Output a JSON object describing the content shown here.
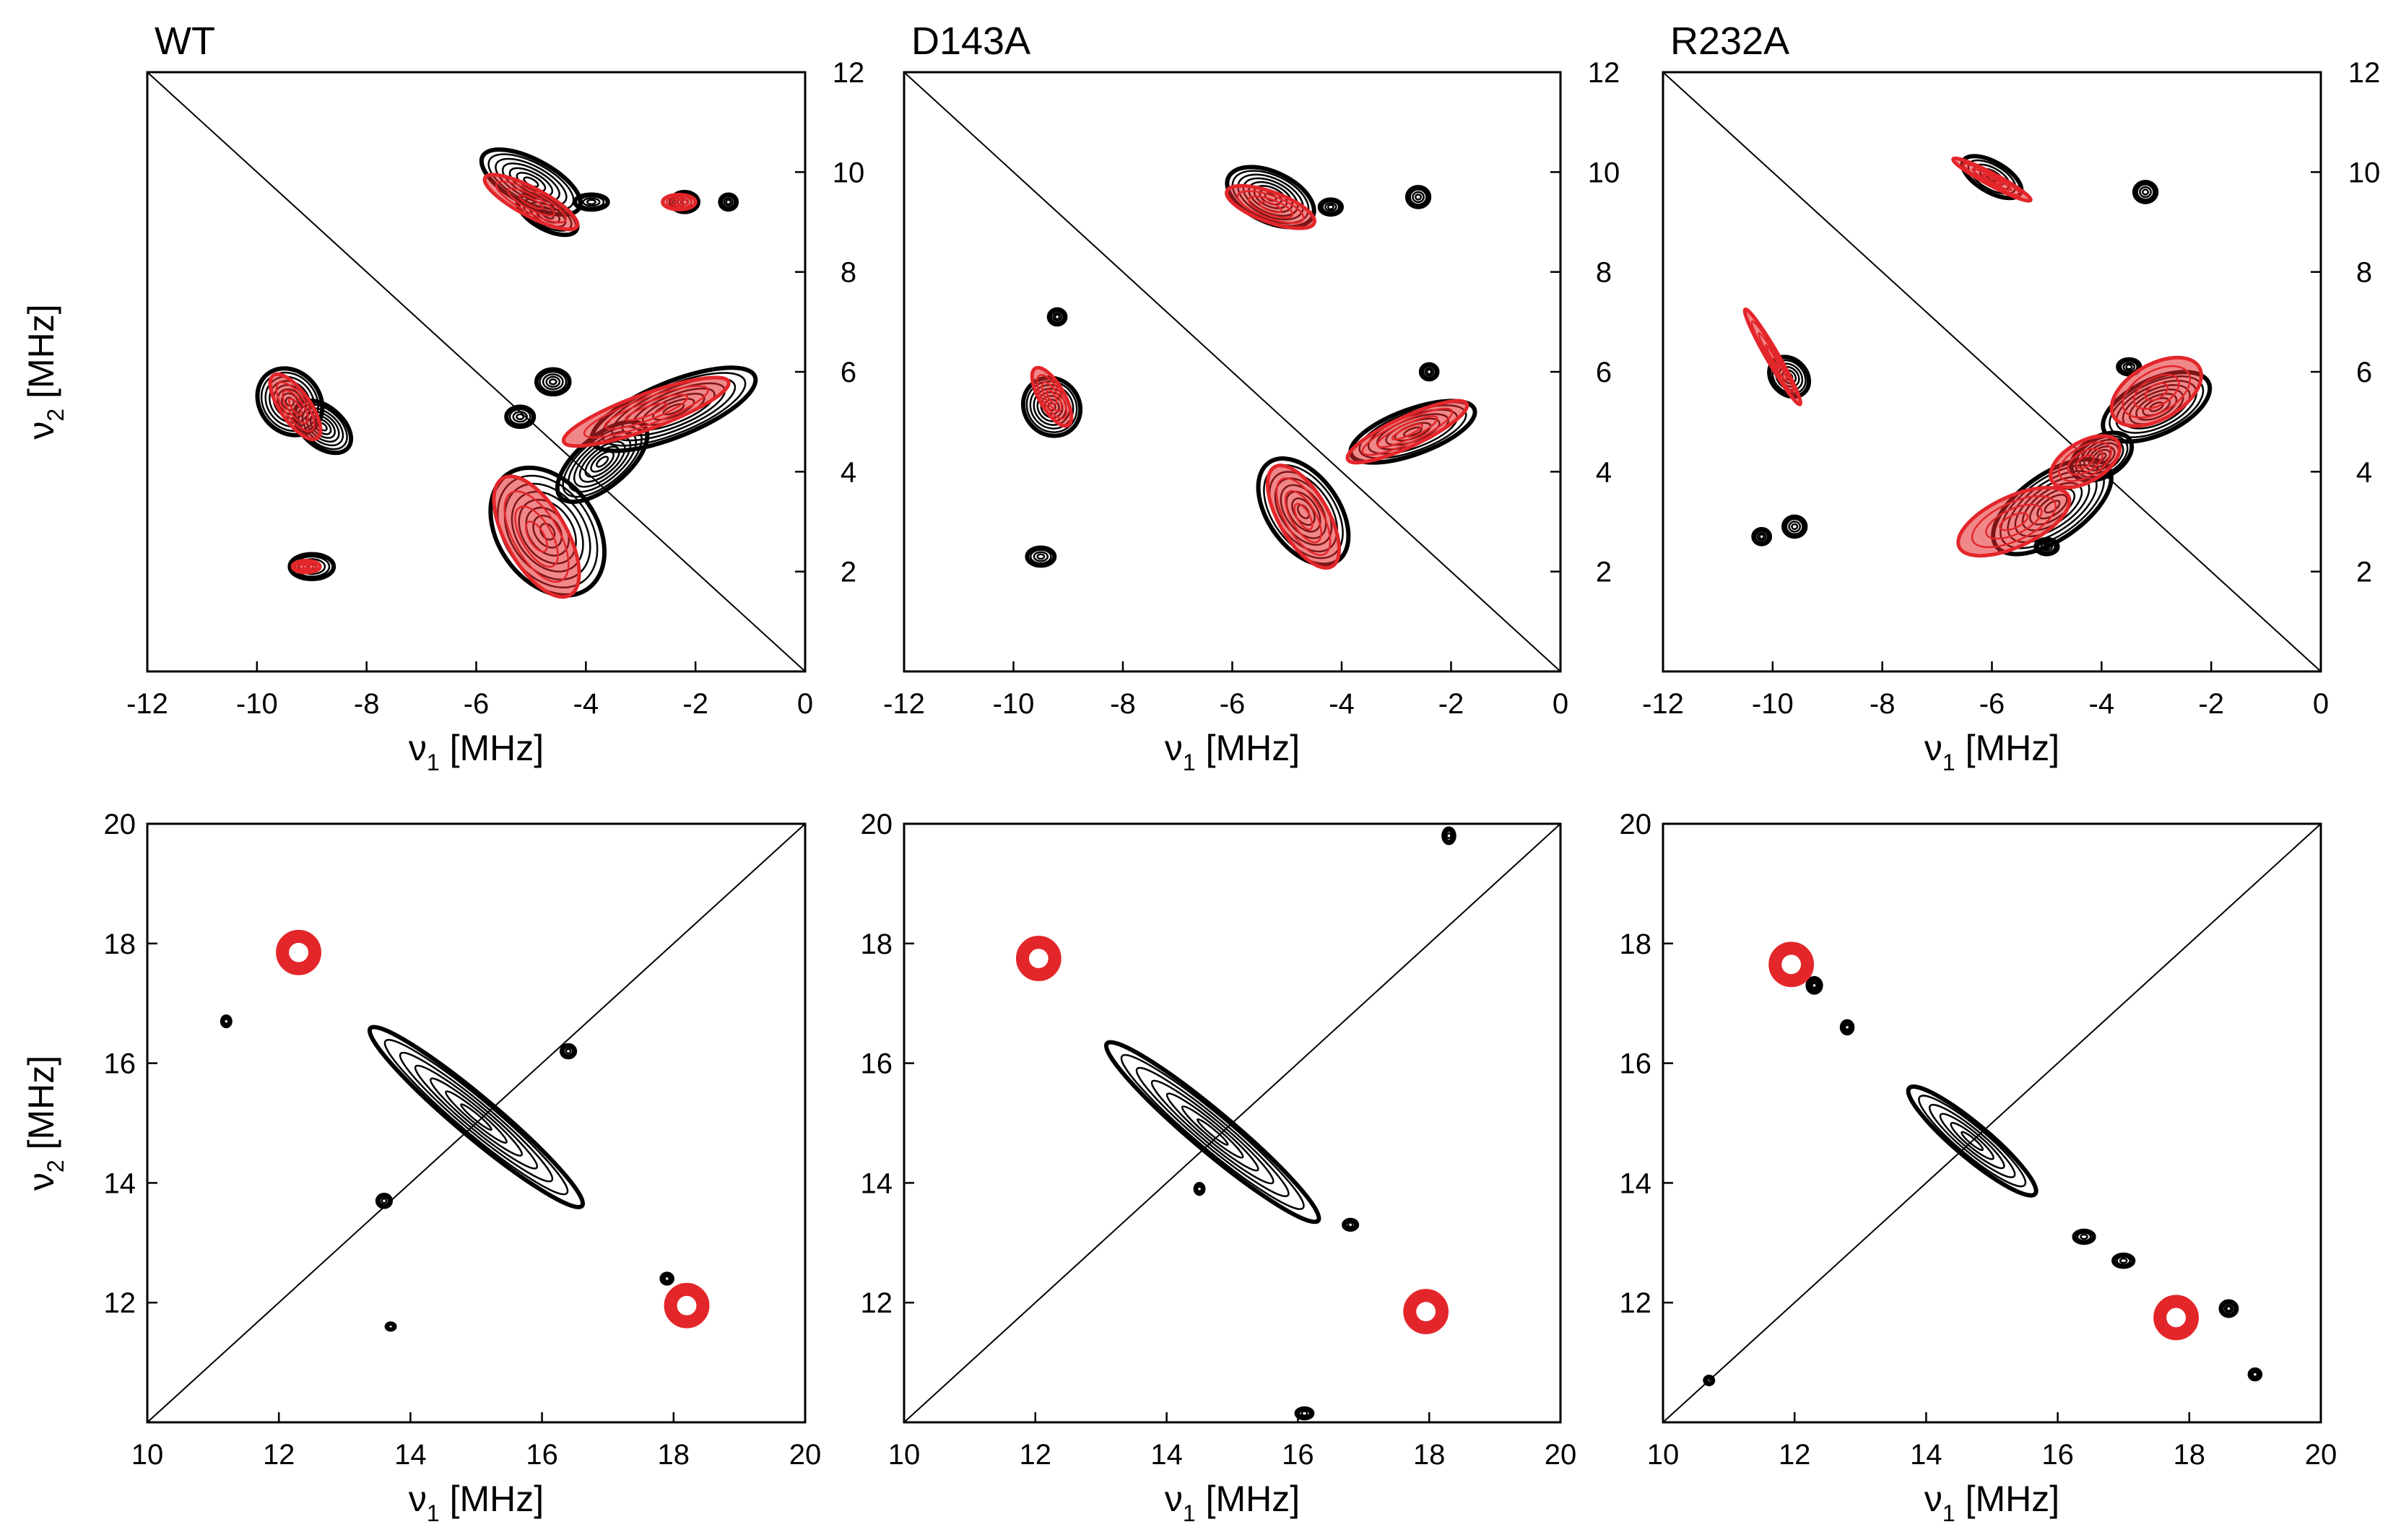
{
  "figure": {
    "ylabel_symbol": "ν",
    "ylabel_sub": "2",
    "ylabel_unit": "[MHz]",
    "xlabel_symbol": "ν",
    "xlabel_sub": "1",
    "xlabel_unit": "[MHz]"
  },
  "colors": {
    "experiment": "#000000",
    "simulation": "#e3262a",
    "axis": "#000000"
  },
  "chart_data": [
    {
      "type": "contour",
      "row": "top",
      "title": "WT",
      "xlim": [
        -12,
        0
      ],
      "ylim": [
        0,
        12
      ],
      "xticks": [
        -12,
        -10,
        -8,
        -6,
        -4,
        -2,
        0
      ],
      "yticks": [
        2,
        4,
        6,
        8,
        10,
        12
      ],
      "xlabel": "ν1 [MHz]",
      "ylabel": "ν2 [MHz]",
      "yaxis_side": "right",
      "ylabel_shown": true,
      "diagonal": "anti",
      "experimental_peaks": [
        {
          "x": -5.0,
          "y": 9.8,
          "rx": 1.0,
          "ry": 0.45,
          "rot": -28
        },
        {
          "x": -4.7,
          "y": 9.15,
          "rx": 0.6,
          "ry": 0.3,
          "rot": -28
        },
        {
          "x": -9.4,
          "y": 5.4,
          "rx": 0.65,
          "ry": 0.6,
          "rot": -50
        },
        {
          "x": -8.8,
          "y": 4.9,
          "rx": 0.6,
          "ry": 0.4,
          "rot": -40
        },
        {
          "x": -2.4,
          "y": 5.25,
          "rx": 1.6,
          "ry": 0.55,
          "rot": 22
        },
        {
          "x": -4.7,
          "y": 2.8,
          "rx": 0.9,
          "ry": 1.4,
          "rot": 35
        },
        {
          "x": -3.7,
          "y": 4.2,
          "rx": 1.0,
          "ry": 0.5,
          "rot": 40
        },
        {
          "x": -9.0,
          "y": 2.1,
          "rx": 0.4,
          "ry": 0.25,
          "rot": 0
        },
        {
          "x": -3.9,
          "y": 9.4,
          "rx": 0.3,
          "ry": 0.15,
          "rot": 0
        },
        {
          "x": -2.2,
          "y": 9.4,
          "rx": 0.25,
          "ry": 0.2,
          "rot": 0
        },
        {
          "x": -1.4,
          "y": 9.4,
          "rx": 0.15,
          "ry": 0.15,
          "rot": 0
        },
        {
          "x": -5.2,
          "y": 5.1,
          "rx": 0.25,
          "ry": 0.2,
          "rot": 0
        },
        {
          "x": -4.6,
          "y": 5.8,
          "rx": 0.3,
          "ry": 0.25,
          "rot": 0
        }
      ],
      "simulated_peaks": [
        {
          "x": -5.0,
          "y": 9.4,
          "rx": 0.95,
          "ry": 0.28,
          "rot": -28
        },
        {
          "x": -9.3,
          "y": 5.3,
          "rx": 0.7,
          "ry": 0.3,
          "rot": -55
        },
        {
          "x": -2.9,
          "y": 5.2,
          "rx": 1.6,
          "ry": 0.35,
          "rot": 20
        },
        {
          "x": -4.9,
          "y": 2.7,
          "rx": 0.55,
          "ry": 1.35,
          "rot": 30
        },
        {
          "x": -2.3,
          "y": 9.4,
          "rx": 0.3,
          "ry": 0.15,
          "rot": 0
        },
        {
          "x": -9.1,
          "y": 2.1,
          "rx": 0.25,
          "ry": 0.12,
          "rot": 0
        }
      ]
    },
    {
      "type": "contour",
      "row": "top",
      "title": "D143A",
      "xlim": [
        -12,
        0
      ],
      "ylim": [
        0,
        12
      ],
      "xticks": [
        -12,
        -10,
        -8,
        -6,
        -4,
        -2,
        0
      ],
      "yticks": [
        2,
        4,
        6,
        8,
        10,
        12
      ],
      "xlabel": "ν1 [MHz]",
      "ylabel": "",
      "yaxis_side": "right",
      "ylabel_shown": false,
      "diagonal": "anti",
      "experimental_peaks": [
        {
          "x": -5.3,
          "y": 9.5,
          "rx": 0.85,
          "ry": 0.5,
          "rot": -25
        },
        {
          "x": -9.3,
          "y": 5.3,
          "rx": 0.55,
          "ry": 0.55,
          "rot": -50
        },
        {
          "x": -2.7,
          "y": 4.8,
          "rx": 1.2,
          "ry": 0.45,
          "rot": 20
        },
        {
          "x": -4.7,
          "y": 3.2,
          "rx": 0.65,
          "ry": 1.2,
          "rot": 35
        },
        {
          "x": -9.5,
          "y": 2.3,
          "rx": 0.25,
          "ry": 0.18,
          "rot": 0
        },
        {
          "x": -4.2,
          "y": 9.3,
          "rx": 0.2,
          "ry": 0.15,
          "rot": 0
        },
        {
          "x": -2.6,
          "y": 9.5,
          "rx": 0.2,
          "ry": 0.2,
          "rot": 0
        },
        {
          "x": -2.4,
          "y": 6.0,
          "rx": 0.15,
          "ry": 0.15,
          "rot": 0
        },
        {
          "x": -9.2,
          "y": 7.1,
          "rx": 0.15,
          "ry": 0.15,
          "rot": 0
        }
      ],
      "simulated_peaks": [
        {
          "x": -5.3,
          "y": 9.3,
          "rx": 0.85,
          "ry": 0.3,
          "rot": -20
        },
        {
          "x": -9.3,
          "y": 5.5,
          "rx": 0.6,
          "ry": 0.25,
          "rot": -60
        },
        {
          "x": -2.8,
          "y": 4.8,
          "rx": 1.2,
          "ry": 0.3,
          "rot": 25
        },
        {
          "x": -4.7,
          "y": 3.1,
          "rx": 0.45,
          "ry": 1.15,
          "rot": 30
        }
      ]
    },
    {
      "type": "contour",
      "row": "top",
      "title": "R232A",
      "xlim": [
        -12,
        0
      ],
      "ylim": [
        0,
        12
      ],
      "xticks": [
        -12,
        -10,
        -8,
        -6,
        -4,
        -2,
        0
      ],
      "yticks": [
        2,
        4,
        6,
        8,
        10,
        12
      ],
      "xlabel": "ν1 [MHz]",
      "ylabel": "",
      "yaxis_side": "right",
      "ylabel_shown": false,
      "diagonal": "anti",
      "experimental_peaks": [
        {
          "x": -6.0,
          "y": 9.9,
          "rx": 0.6,
          "ry": 0.3,
          "rot": -30
        },
        {
          "x": -9.7,
          "y": 5.9,
          "rx": 0.4,
          "ry": 0.35,
          "rot": -45
        },
        {
          "x": -4.9,
          "y": 3.3,
          "rx": 1.25,
          "ry": 0.65,
          "rot": 35
        },
        {
          "x": -3.0,
          "y": 5.3,
          "rx": 1.05,
          "ry": 0.55,
          "rot": 25
        },
        {
          "x": -4.0,
          "y": 4.3,
          "rx": 0.6,
          "ry": 0.4,
          "rot": 30
        },
        {
          "x": -3.5,
          "y": 6.1,
          "rx": 0.2,
          "ry": 0.15,
          "rot": 0
        },
        {
          "x": -3.2,
          "y": 9.6,
          "rx": 0.2,
          "ry": 0.2,
          "rot": 0
        },
        {
          "x": -9.6,
          "y": 2.9,
          "rx": 0.2,
          "ry": 0.2,
          "rot": 0
        },
        {
          "x": -10.2,
          "y": 2.7,
          "rx": 0.15,
          "ry": 0.15,
          "rot": 0
        },
        {
          "x": -5.0,
          "y": 2.5,
          "rx": 0.2,
          "ry": 0.15,
          "rot": 0
        }
      ],
      "simulated_peaks": [
        {
          "x": -6.0,
          "y": 9.85,
          "rx": 0.8,
          "ry": 0.12,
          "rot": -28
        },
        {
          "x": -10.0,
          "y": 6.3,
          "rx": 1.0,
          "ry": 0.12,
          "rot": -60
        },
        {
          "x": -5.6,
          "y": 3.0,
          "rx": 1.1,
          "ry": 0.5,
          "rot": 25
        },
        {
          "x": -3.0,
          "y": 5.6,
          "rx": 0.9,
          "ry": 0.55,
          "rot": 30
        },
        {
          "x": -4.3,
          "y": 4.2,
          "rx": 0.7,
          "ry": 0.4,
          "rot": 30
        }
      ]
    },
    {
      "type": "contour",
      "row": "bottom",
      "title": "",
      "xlim": [
        10,
        20
      ],
      "ylim": [
        10,
        20
      ],
      "xticks": [
        10,
        12,
        14,
        16,
        18,
        20
      ],
      "yticks": [
        12,
        14,
        16,
        18,
        20
      ],
      "xlabel": "ν1 [MHz]",
      "ylabel": "ν2 [MHz]",
      "yaxis_side": "left",
      "ylabel_shown": true,
      "diagonal": "main",
      "experimental_peaks": [
        {
          "x": 15.0,
          "y": 15.1,
          "rx": 2.1,
          "ry": 0.33,
          "rot": -40
        },
        {
          "x": 13.6,
          "y": 13.7,
          "rx": 0.1,
          "ry": 0.1,
          "rot": 0
        },
        {
          "x": 16.4,
          "y": 16.2,
          "rx": 0.1,
          "ry": 0.1,
          "rot": 0
        },
        {
          "x": 11.2,
          "y": 16.7,
          "rx": 0.06,
          "ry": 0.08,
          "rot": 0
        },
        {
          "x": 17.9,
          "y": 12.4,
          "rx": 0.08,
          "ry": 0.08,
          "rot": 0
        },
        {
          "x": 13.7,
          "y": 11.6,
          "rx": 0.06,
          "ry": 0.05,
          "rot": 0
        }
      ],
      "simulated_peaks": [
        {
          "x": 12.3,
          "y": 17.85,
          "rx": 0.3,
          "ry": 0.3,
          "rot": 0
        },
        {
          "x": 18.2,
          "y": 11.95,
          "rx": 0.3,
          "ry": 0.3,
          "rot": 0
        }
      ]
    },
    {
      "type": "contour",
      "row": "bottom",
      "title": "",
      "xlim": [
        10,
        20
      ],
      "ylim": [
        10,
        20
      ],
      "xticks": [
        10,
        12,
        14,
        16,
        18,
        20
      ],
      "yticks": [
        12,
        14,
        16,
        18,
        20
      ],
      "xlabel": "ν1 [MHz]",
      "ylabel": "",
      "yaxis_side": "left",
      "ylabel_shown": false,
      "diagonal": "main",
      "experimental_peaks": [
        {
          "x": 14.7,
          "y": 14.85,
          "rx": 2.1,
          "ry": 0.33,
          "rot": -40
        },
        {
          "x": 16.8,
          "y": 13.3,
          "rx": 0.1,
          "ry": 0.08,
          "rot": 0
        },
        {
          "x": 16.1,
          "y": 10.15,
          "rx": 0.12,
          "ry": 0.08,
          "rot": 0
        },
        {
          "x": 18.3,
          "y": 19.8,
          "rx": 0.08,
          "ry": 0.12,
          "rot": 0
        },
        {
          "x": 14.5,
          "y": 13.9,
          "rx": 0.06,
          "ry": 0.08,
          "rot": 0
        }
      ],
      "simulated_peaks": [
        {
          "x": 12.05,
          "y": 17.75,
          "rx": 0.3,
          "ry": 0.3,
          "rot": 0
        },
        {
          "x": 17.95,
          "y": 11.85,
          "rx": 0.3,
          "ry": 0.3,
          "rot": 0
        }
      ]
    },
    {
      "type": "contour",
      "row": "bottom",
      "title": "",
      "xlim": [
        10,
        20
      ],
      "ylim": [
        10,
        20
      ],
      "xticks": [
        10,
        12,
        14,
        16,
        18,
        20
      ],
      "yticks": [
        12,
        14,
        16,
        18,
        20
      ],
      "xlabel": "ν1 [MHz]",
      "ylabel": "",
      "yaxis_side": "left",
      "ylabel_shown": false,
      "diagonal": "main",
      "experimental_peaks": [
        {
          "x": 14.7,
          "y": 14.7,
          "rx": 1.25,
          "ry": 0.28,
          "rot": -40
        },
        {
          "x": 12.3,
          "y": 17.3,
          "rx": 0.1,
          "ry": 0.12,
          "rot": 0
        },
        {
          "x": 12.8,
          "y": 16.6,
          "rx": 0.08,
          "ry": 0.1,
          "rot": 0
        },
        {
          "x": 16.4,
          "y": 13.1,
          "rx": 0.15,
          "ry": 0.1,
          "rot": 0
        },
        {
          "x": 17.0,
          "y": 12.7,
          "rx": 0.15,
          "ry": 0.1,
          "rot": 0
        },
        {
          "x": 18.6,
          "y": 11.9,
          "rx": 0.12,
          "ry": 0.12,
          "rot": 0
        },
        {
          "x": 19.0,
          "y": 10.8,
          "rx": 0.08,
          "ry": 0.08,
          "rot": 0
        },
        {
          "x": 10.7,
          "y": 10.7,
          "rx": 0.06,
          "ry": 0.06,
          "rot": 0
        }
      ],
      "simulated_peaks": [
        {
          "x": 11.95,
          "y": 17.65,
          "rx": 0.3,
          "ry": 0.3,
          "rot": 0
        },
        {
          "x": 17.8,
          "y": 11.75,
          "rx": 0.3,
          "ry": 0.3,
          "rot": 0
        }
      ]
    }
  ]
}
